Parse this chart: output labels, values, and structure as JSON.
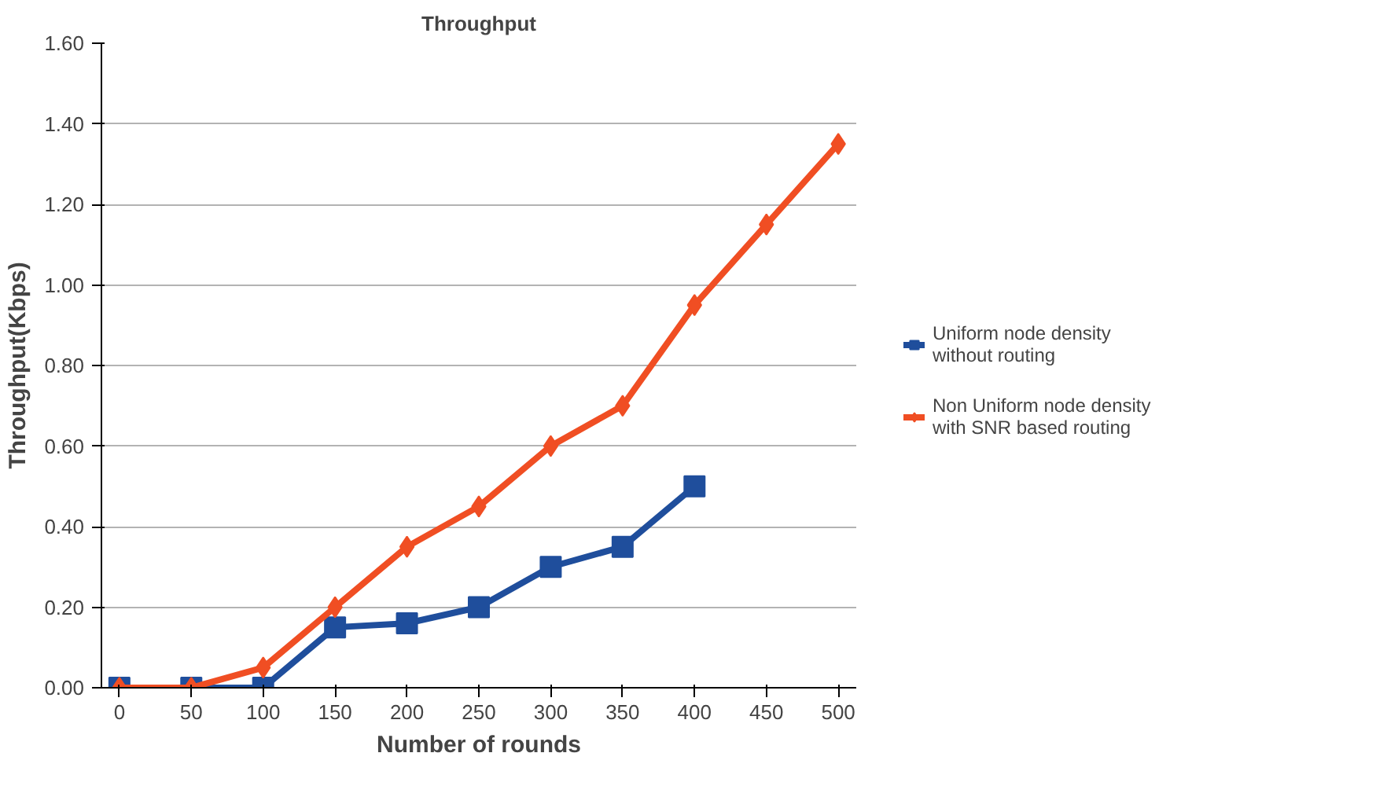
{
  "chart_data": {
    "type": "line",
    "title": "Throughput",
    "xlabel": "Number of rounds",
    "ylabel": "Throughput(Kbps)",
    "categories": [
      "0",
      "50",
      "100",
      "150",
      "200",
      "250",
      "300",
      "350",
      "400",
      "450",
      "500"
    ],
    "series": [
      {
        "name": "Uniform node density without routing",
        "color": "#1f4e9c",
        "marker": "square",
        "values": [
          0,
          0,
          0,
          0.15,
          0.16,
          0.2,
          0.3,
          0.35,
          0.5,
          null,
          null
        ]
      },
      {
        "name": "Non Uniform node density with SNR based routing",
        "color": "#f04e23",
        "marker": "diamond",
        "values": [
          0,
          0,
          0.05,
          0.2,
          0.35,
          0.45,
          0.6,
          0.7,
          0.95,
          1.15,
          1.35
        ]
      }
    ],
    "ylim": [
      0,
      1.6
    ],
    "yticks": [
      {
        "value": 0,
        "label": "0.00"
      },
      {
        "value": 0.2,
        "label": "0.20"
      },
      {
        "value": 0.4,
        "label": "0.40"
      },
      {
        "value": 0.6,
        "label": "0.60"
      },
      {
        "value": 0.8,
        "label": "0.80"
      },
      {
        "value": 1.0,
        "label": "1.00"
      },
      {
        "value": 1.2,
        "label": "1.20"
      },
      {
        "value": 1.4,
        "label": "1.40"
      },
      {
        "value": 1.6,
        "label": "1.60"
      }
    ],
    "grid": "y",
    "legend": "right",
    "line_style": "solid"
  }
}
